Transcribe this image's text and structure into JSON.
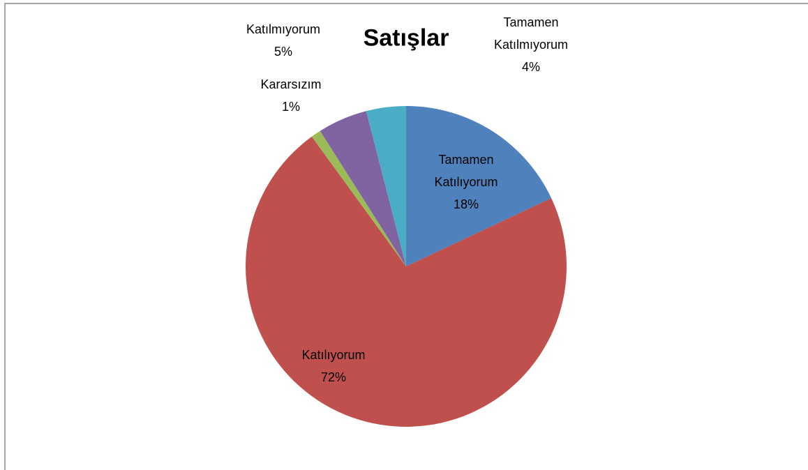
{
  "chart_data": {
    "type": "pie",
    "title": "Satışlar",
    "categories": [
      "Tamamen Katılıyorum",
      "Katılıyorum",
      "Kararsızım",
      "Katılmıyorum",
      "Tamamen Katılmıyorum"
    ],
    "values": [
      18,
      72,
      1,
      5,
      4
    ],
    "value_labels": [
      "18%",
      "72%",
      "1%",
      "5%",
      "4%"
    ],
    "colors": [
      "#4f81bd",
      "#c0504d",
      "#9bbb59",
      "#8064a2",
      "#4bacc6"
    ]
  }
}
